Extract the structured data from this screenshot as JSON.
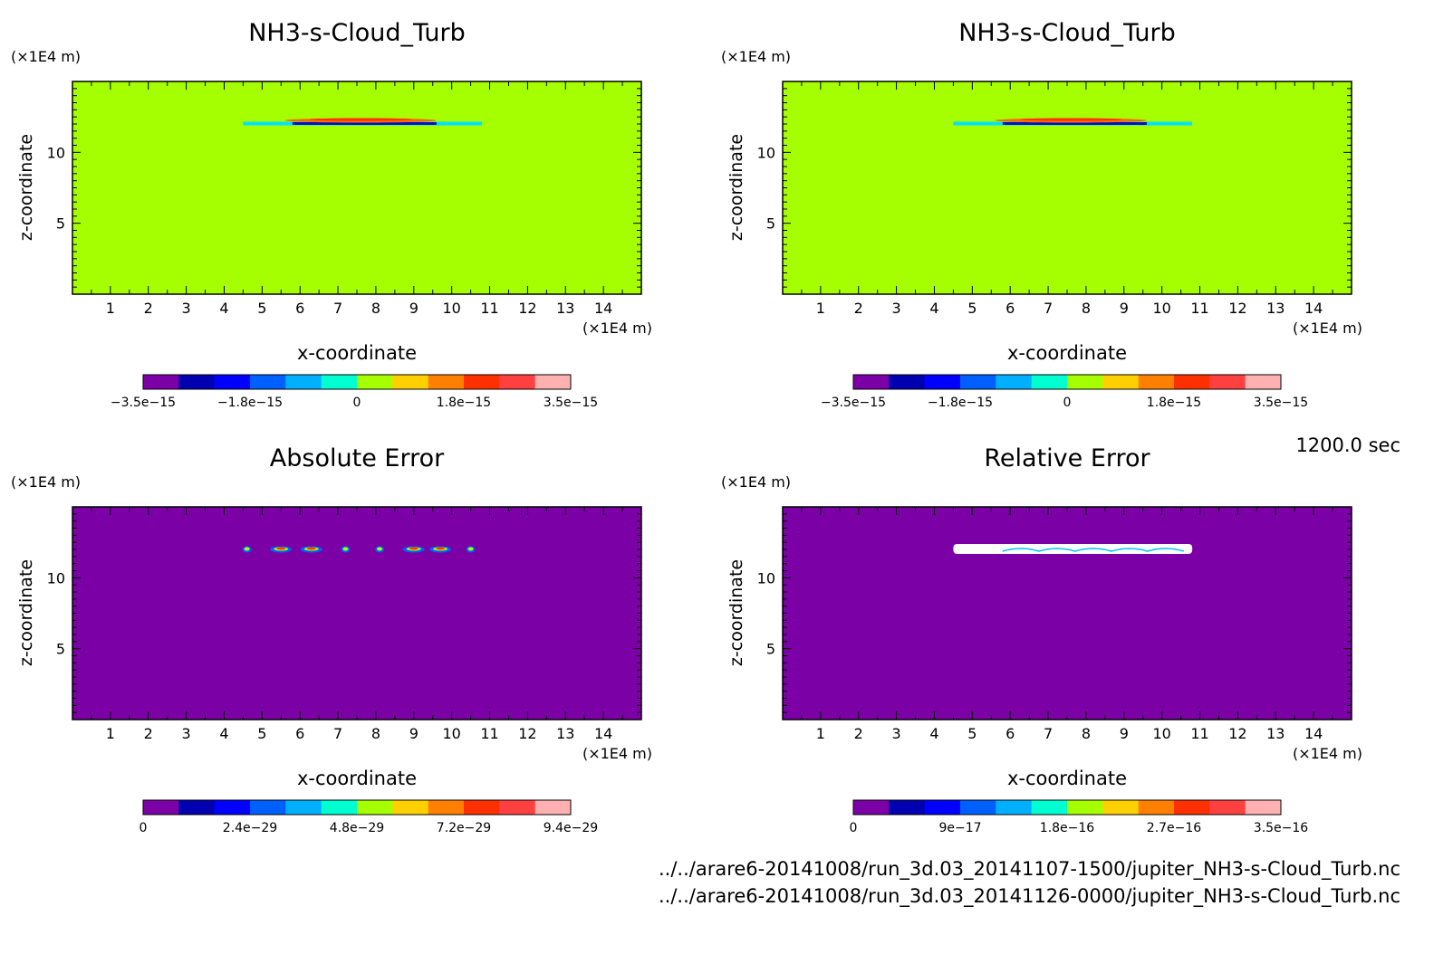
{
  "time_label": "1200.0 sec",
  "files": [
    "../../arare6-20141008/run_3d.03_20141107-1500/jupiter_NH3-s-Cloud_Turb.nc",
    "../../arare6-20141008/run_3d.03_20141126-0000/jupiter_NH3-s-Cloud_Turb.nc"
  ],
  "colors": {
    "scale": [
      "#7b00a6",
      "#0000b0",
      "#0000ff",
      "#0060ff",
      "#00b0ff",
      "#00ffd0",
      "#a6ff00",
      "#ffd000",
      "#ff8000",
      "#ff3000",
      "#ff4040",
      "#ffb0b0"
    ]
  },
  "chart_data": [
    {
      "type": "heatmap",
      "title": "NH3-s-Cloud_Turb",
      "xlabel": "x-coordinate",
      "ylabel": "z-coordinate",
      "xunit": "(×1E4 m)",
      "yunit": "(×1E4 m)",
      "xlim": [
        0,
        15
      ],
      "ylim": [
        0,
        15
      ],
      "xticks": [
        "1",
        "2",
        "3",
        "4",
        "5",
        "6",
        "7",
        "8",
        "9",
        "10",
        "11",
        "12",
        "13",
        "14"
      ],
      "yticks": [
        "5",
        "10"
      ],
      "background_color": "#a6ff00",
      "colorbar": {
        "min": -3.5e-15,
        "max": 3.5e-15,
        "labels": [
          "−3.5e−15",
          "−1.8e−15",
          "0",
          "1.8e−15",
          "3.5e−15"
        ]
      },
      "feature": {
        "kind": "thin cloud layer",
        "x_range": [
          4.5,
          10.8
        ],
        "z": 12.0
      }
    },
    {
      "type": "heatmap",
      "title": "NH3-s-Cloud_Turb",
      "xlabel": "x-coordinate",
      "ylabel": "z-coordinate",
      "xunit": "(×1E4 m)",
      "yunit": "(×1E4 m)",
      "xlim": [
        0,
        15
      ],
      "ylim": [
        0,
        15
      ],
      "xticks": [
        "1",
        "2",
        "3",
        "4",
        "5",
        "6",
        "7",
        "8",
        "9",
        "10",
        "11",
        "12",
        "13",
        "14"
      ],
      "yticks": [
        "5",
        "10"
      ],
      "background_color": "#a6ff00",
      "colorbar": {
        "min": -3.5e-15,
        "max": 3.5e-15,
        "labels": [
          "−3.5e−15",
          "−1.8e−15",
          "0",
          "1.8e−15",
          "3.5e−15"
        ]
      },
      "feature": {
        "kind": "thin cloud layer",
        "x_range": [
          4.5,
          10.8
        ],
        "z": 12.0
      }
    },
    {
      "type": "heatmap",
      "title": "Absolute Error",
      "xlabel": "x-coordinate",
      "ylabel": "z-coordinate",
      "xunit": "(×1E4 m)",
      "yunit": "(×1E4 m)",
      "xlim": [
        0,
        15
      ],
      "ylim": [
        0,
        15
      ],
      "xticks": [
        "1",
        "2",
        "3",
        "4",
        "5",
        "6",
        "7",
        "8",
        "9",
        "10",
        "11",
        "12",
        "13",
        "14"
      ],
      "yticks": [
        "5",
        "10"
      ],
      "background_color": "#7b00a6",
      "colorbar": {
        "min": 0,
        "max": 9.4e-29,
        "labels": [
          "0",
          "2.4e−29",
          "4.8e−29",
          "7.2e−29",
          "9.4e−29"
        ]
      },
      "feature": {
        "kind": "error spots",
        "z": 12.0,
        "x_positions": [
          4.6,
          5.5,
          6.3,
          7.2,
          8.1,
          9.0,
          9.7,
          10.5
        ]
      }
    },
    {
      "type": "heatmap",
      "title": "Relative Error",
      "xlabel": "x-coordinate",
      "ylabel": "z-coordinate",
      "xunit": "(×1E4 m)",
      "yunit": "(×1E4 m)",
      "xlim": [
        0,
        15
      ],
      "ylim": [
        0,
        15
      ],
      "xticks": [
        "1",
        "2",
        "3",
        "4",
        "5",
        "6",
        "7",
        "8",
        "9",
        "10",
        "11",
        "12",
        "13",
        "14"
      ],
      "yticks": [
        "5",
        "10"
      ],
      "background_color": "#7b00a6",
      "colorbar": {
        "min": 0,
        "max": 3.5e-16,
        "labels": [
          "0",
          "9e−17",
          "1.8e−16",
          "2.7e−16",
          "3.5e−16"
        ]
      },
      "feature": {
        "kind": "white band (undefined)",
        "x_range": [
          4.5,
          10.8
        ],
        "z": 12.0
      }
    }
  ]
}
